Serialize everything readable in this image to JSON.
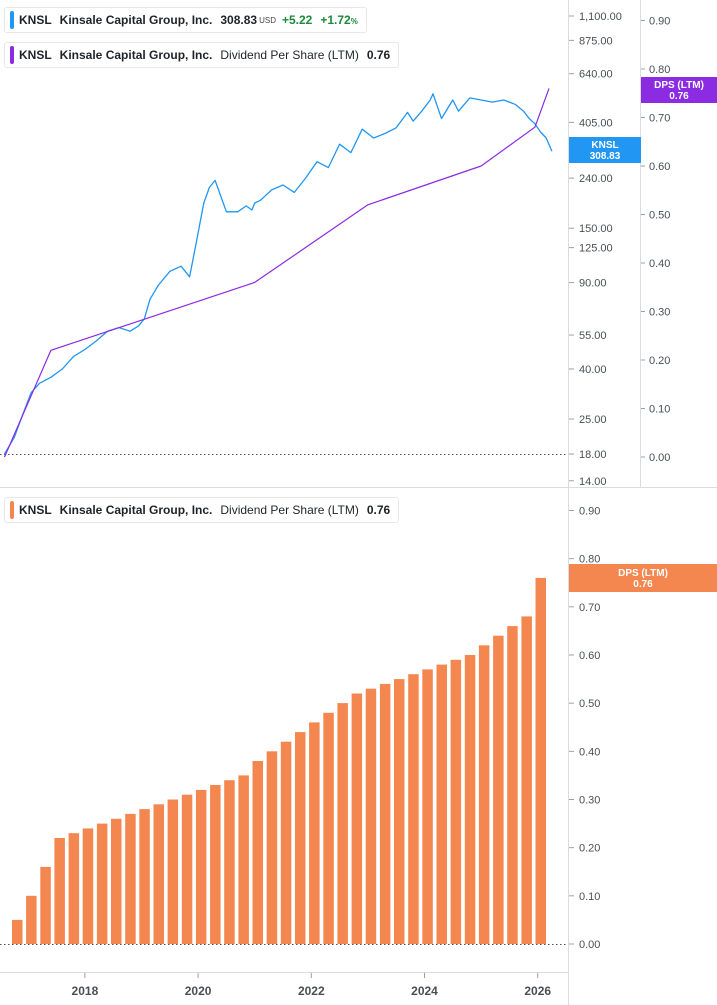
{
  "legends": {
    "price": {
      "ticker": "KNSL",
      "company": "Kinsale Capital Group, Inc.",
      "value": "308.83",
      "unit": "USD",
      "change": "+5.22",
      "change_pct": "+1.72",
      "pct_sign": "%",
      "color": "#2196f3"
    },
    "dps_top": {
      "ticker": "KNSL",
      "company": "Kinsale Capital Group, Inc.",
      "metric": "Dividend Per Share (LTM)",
      "value": "0.76",
      "color": "#8b2be2"
    },
    "dps_bottom": {
      "ticker": "KNSL",
      "company": "Kinsale Capital Group, Inc.",
      "metric": "Dividend Per Share (LTM)",
      "value": "0.76",
      "color": "#f4874f"
    }
  },
  "tags": {
    "price": {
      "line1": "KNSL",
      "line2": "308.83",
      "color": "#2196f3"
    },
    "dps_top": {
      "line1": "DPS (LTM)",
      "line2": "0.76",
      "color": "#8b2be2"
    },
    "dps_bottom": {
      "line1": "DPS (LTM)",
      "line2": "0.76",
      "color": "#f4874f"
    }
  },
  "chart_data": [
    {
      "type": "line",
      "scale": "log",
      "y_tick_labels": [
        "1,100.00",
        "875.00",
        "640.00",
        "405.00",
        "240.00",
        "150.00",
        "125.00",
        "90.00",
        "55.00",
        "40.00",
        "25.00",
        "18.00",
        "14.00"
      ],
      "y_ticks": [
        1100,
        875,
        640,
        405,
        240,
        150,
        125,
        90,
        55,
        40,
        25,
        18,
        14
      ],
      "ylim": [
        14,
        1150
      ],
      "baseline": 18,
      "secondary_axis": {
        "tick_labels": [
          "0.90",
          "0.80",
          "0.70",
          "0.60",
          "0.50",
          "0.40",
          "0.30",
          "0.20",
          "0.10",
          "0.00"
        ],
        "ticks": [
          0.9,
          0.8,
          0.7,
          0.6,
          0.5,
          0.4,
          0.3,
          0.2,
          0.1,
          0.0
        ]
      },
      "series": [
        {
          "key": "price",
          "color": "#2196f3",
          "x": [
            2016.58,
            2016.75,
            2016.9,
            2017.05,
            2017.2,
            2017.4,
            2017.6,
            2017.8,
            2018.0,
            2018.2,
            2018.4,
            2018.6,
            2018.8,
            2018.95,
            2019.05,
            2019.15,
            2019.3,
            2019.5,
            2019.7,
            2019.85,
            2019.95,
            2020.1,
            2020.2,
            2020.3,
            2020.5,
            2020.7,
            2020.85,
            2020.95,
            2021.0,
            2021.1,
            2021.3,
            2021.5,
            2021.7,
            2021.9,
            2022.1,
            2022.3,
            2022.5,
            2022.7,
            2022.9,
            2023.1,
            2023.3,
            2023.5,
            2023.7,
            2023.8,
            2023.95,
            2024.1,
            2024.15,
            2024.3,
            2024.5,
            2024.6,
            2024.8,
            2025.0,
            2025.2,
            2025.4,
            2025.6,
            2025.75,
            2025.85,
            2025.95,
            2026.05,
            2026.15,
            2026.25
          ],
          "values": [
            18,
            21,
            26,
            32,
            35,
            37,
            40,
            45,
            48,
            52,
            57,
            59,
            57,
            60,
            64,
            77,
            88,
            100,
            105,
            95,
            125,
            190,
            220,
            235,
            175,
            175,
            185,
            178,
            190,
            195,
            215,
            225,
            210,
            240,
            280,
            265,
            330,
            305,
            380,
            350,
            365,
            385,
            445,
            410,
            450,
            500,
            530,
            420,
            500,
            450,
            510,
            500,
            490,
            500,
            480,
            450,
            420,
            400,
            370,
            350,
            308.83
          ]
        },
        {
          "key": "dps",
          "axis": "secondary",
          "color": "#8b2be2",
          "x": [
            2016.58,
            2017.4,
            2021.0,
            2023.0,
            2025.0,
            2025.95,
            2026.2
          ],
          "values": [
            0.0,
            0.22,
            0.36,
            0.52,
            0.6,
            0.68,
            0.76
          ]
        }
      ]
    },
    {
      "type": "bar",
      "y_tick_labels": [
        "0.90",
        "0.80",
        "0.70",
        "0.60",
        "0.50",
        "0.40",
        "0.30",
        "0.20",
        "0.10",
        "0.00"
      ],
      "y_ticks": [
        0.9,
        0.8,
        0.7,
        0.6,
        0.5,
        0.4,
        0.3,
        0.2,
        0.1,
        0.0
      ],
      "ylim": [
        0,
        0.9
      ],
      "x_tick_labels": [
        "2018",
        "2020",
        "2022",
        "2024",
        "2026"
      ],
      "x_ticks": [
        2018,
        2020,
        2022,
        2024,
        2026
      ],
      "series": [
        {
          "key": "dps",
          "color": "#f4874f",
          "x": [
            2016.8,
            2017.05,
            2017.3,
            2017.55,
            2017.8,
            2018.05,
            2018.3,
            2018.55,
            2018.8,
            2019.05,
            2019.3,
            2019.55,
            2019.8,
            2020.05,
            2020.3,
            2020.55,
            2020.8,
            2021.05,
            2021.3,
            2021.55,
            2021.8,
            2022.05,
            2022.3,
            2022.55,
            2022.8,
            2023.05,
            2023.3,
            2023.55,
            2023.8,
            2024.05,
            2024.3,
            2024.55,
            2024.8,
            2025.05,
            2025.3,
            2025.55,
            2025.8,
            2026.05
          ],
          "values": [
            0.05,
            0.1,
            0.16,
            0.22,
            0.23,
            0.24,
            0.25,
            0.26,
            0.27,
            0.28,
            0.29,
            0.3,
            0.31,
            0.32,
            0.33,
            0.34,
            0.35,
            0.38,
            0.4,
            0.42,
            0.44,
            0.46,
            0.48,
            0.5,
            0.52,
            0.53,
            0.54,
            0.55,
            0.56,
            0.57,
            0.58,
            0.59,
            0.6,
            0.62,
            0.64,
            0.66,
            0.68,
            0.76
          ]
        }
      ]
    }
  ]
}
